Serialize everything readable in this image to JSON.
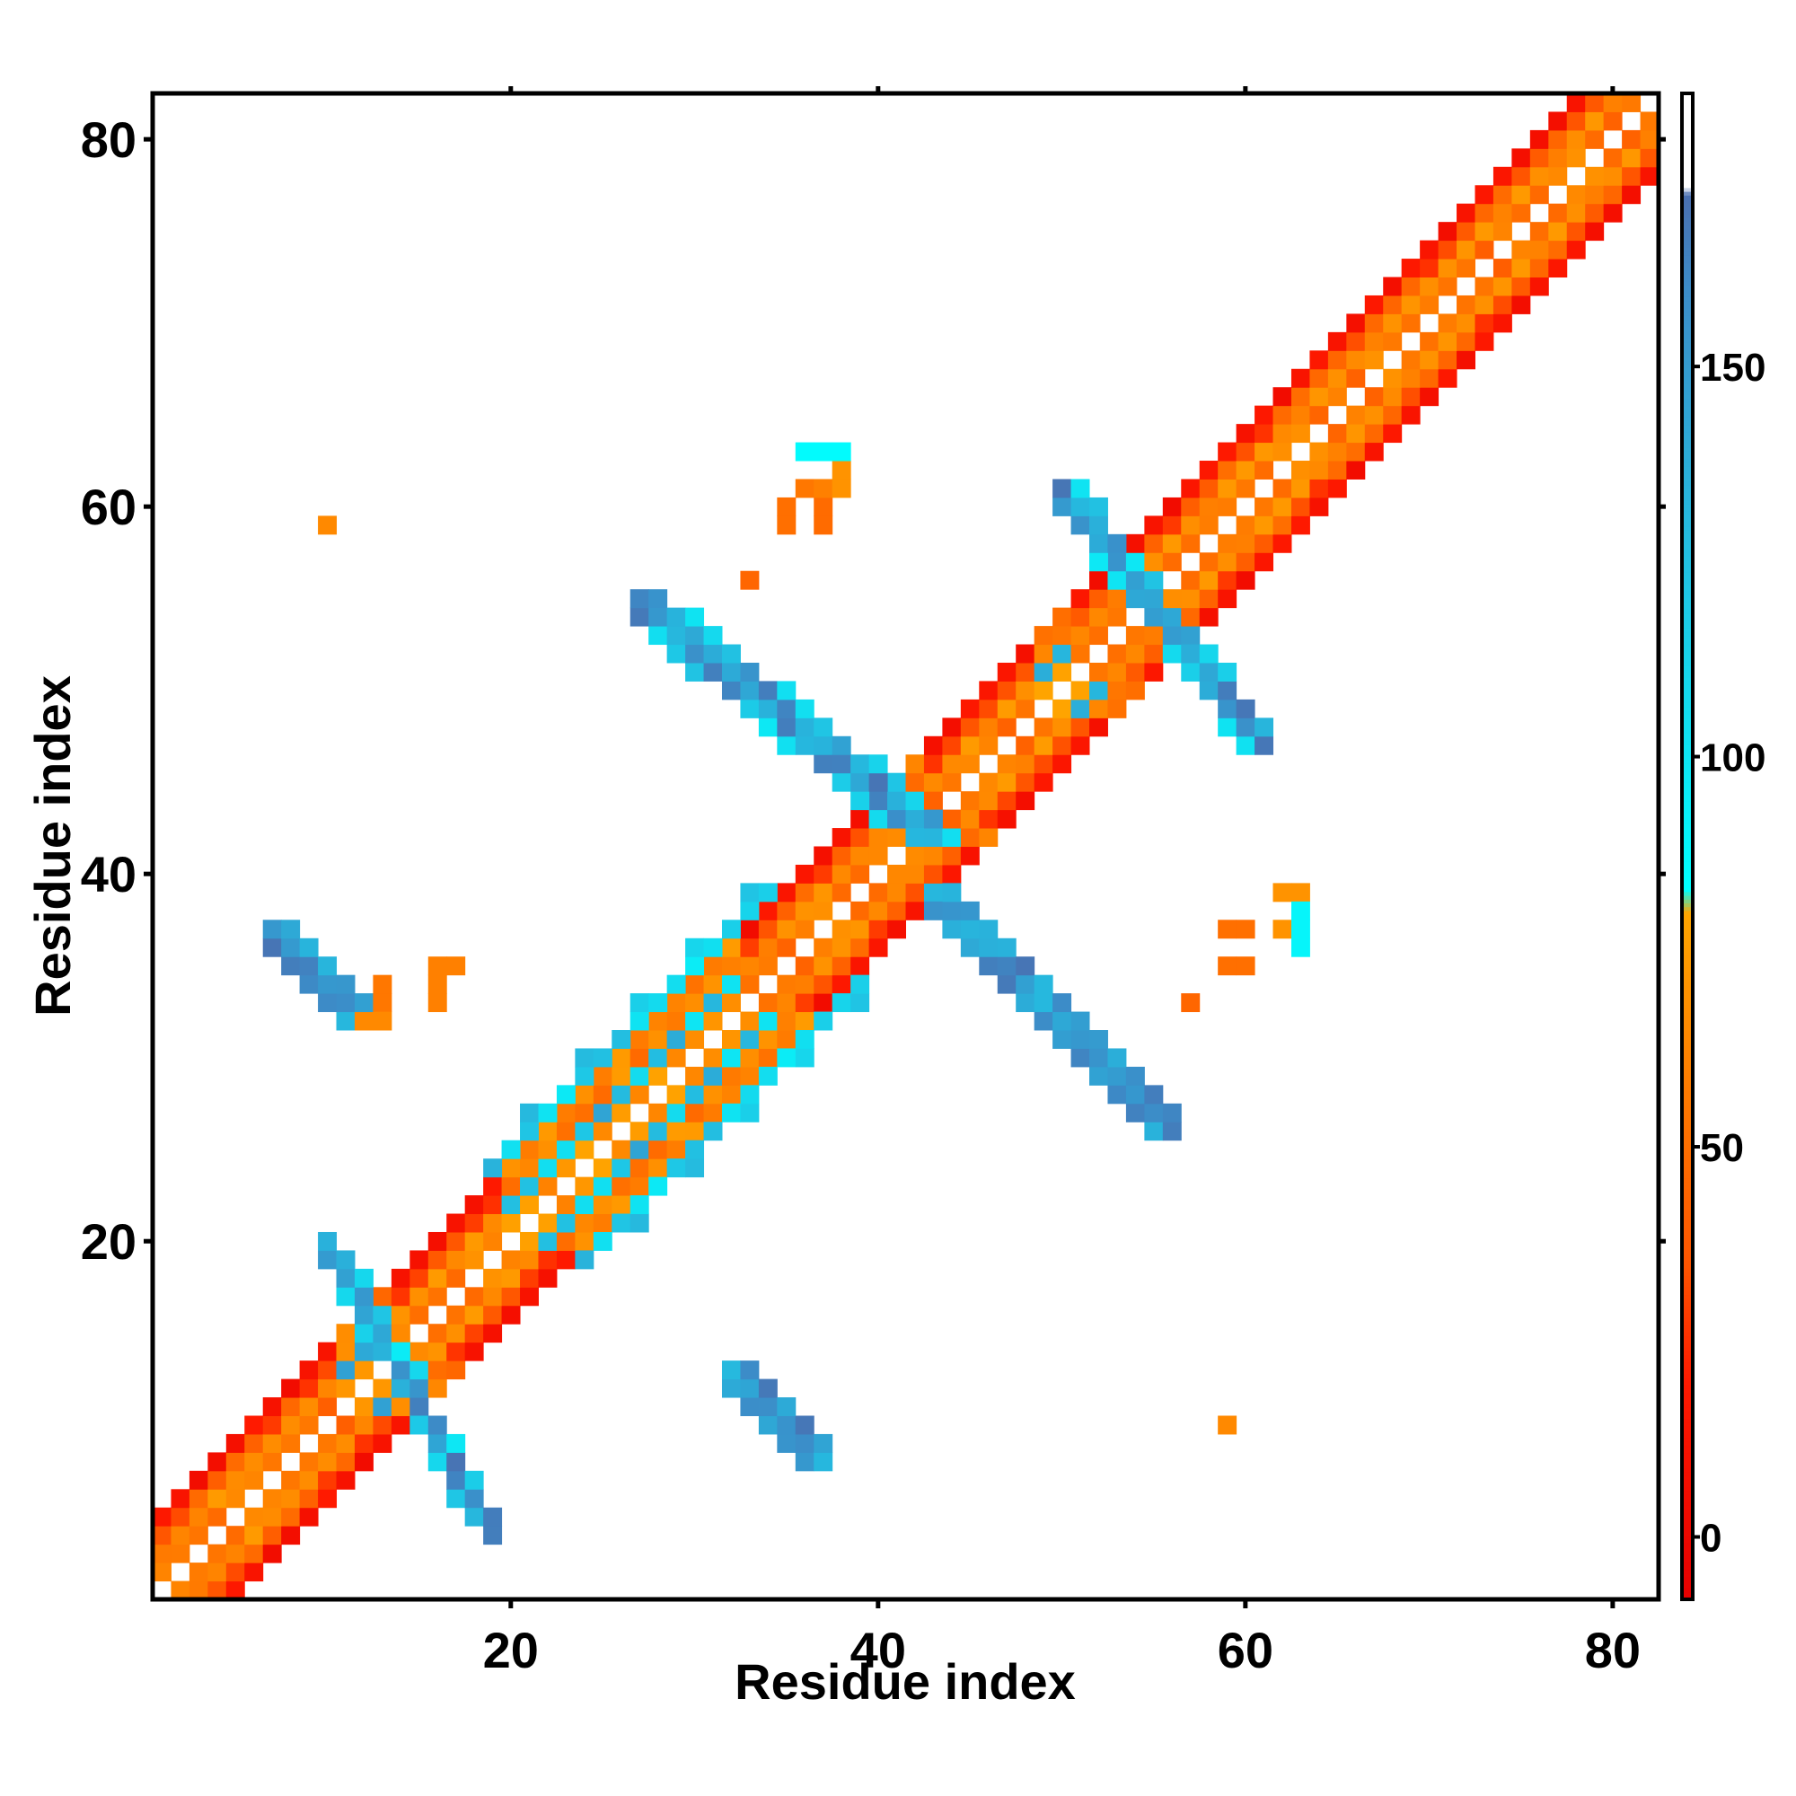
{
  "chart_data": {
    "type": "heatmap",
    "title": "",
    "xlabel": "Residue index",
    "ylabel": "Residue index",
    "xlim": [
      1,
      82
    ],
    "ylim": [
      1,
      82
    ],
    "x_ticks": [
      20,
      40,
      60,
      80
    ],
    "y_ticks": [
      20,
      40,
      60,
      80
    ],
    "grid": false,
    "colorbar": {
      "min": -8,
      "max": 185,
      "ticks": [
        0,
        50,
        100,
        150
      ],
      "stops": [
        {
          "value": -8,
          "color": "#e60000"
        },
        {
          "value": 20,
          "color": "#ff1a00"
        },
        {
          "value": 35,
          "color": "#ff5500"
        },
        {
          "value": 55,
          "color": "#ff7700"
        },
        {
          "value": 80,
          "color": "#ffa500"
        },
        {
          "value": 83,
          "color": "#00ffff"
        },
        {
          "value": 120,
          "color": "#1ec8e6"
        },
        {
          "value": 160,
          "color": "#3c8cc8"
        },
        {
          "value": 172,
          "color": "#4a6fb0"
        },
        {
          "value": 173,
          "color": "#ffffff"
        },
        {
          "value": 185,
          "color": "#ffffff"
        }
      ]
    },
    "value_ranges": {
      "helix": [
        0,
        25
      ],
      "strand": [
        110,
        160
      ],
      "unassigned": "white / no data"
    },
    "regions": [
      {
        "kind": "diagonal",
        "from": 1,
        "to": 82
      },
      {
        "kind": "antiparallel-sheet",
        "x": [
          10,
          19
        ],
        "y": [
          4,
          20
        ]
      },
      {
        "kind": "antiparallel-sheet",
        "x": [
          27,
          43
        ],
        "y": [
          42,
          55
        ]
      },
      {
        "kind": "antiparallel-sheet",
        "x": [
          43,
          56
        ],
        "y": [
          26,
          39
        ]
      },
      {
        "kind": "antiparallel-sheet",
        "x": [
          50,
          61
        ],
        "y": [
          47,
          61
        ]
      },
      {
        "kind": "antiparallel-sheet",
        "x": [
          7,
          12
        ],
        "y": [
          32,
          37
        ]
      },
      {
        "kind": "antiparallel-sheet",
        "x": [
          32,
          37
        ],
        "y": [
          8,
          13
        ]
      },
      {
        "kind": "diagonal-strand-band",
        "x": [
          19,
          34
        ],
        "y": [
          19,
          34
        ]
      }
    ],
    "isolated_cells": [
      {
        "x": 10,
        "y": 59,
        "value": 65
      },
      {
        "x": 33,
        "y": 56,
        "value": 45
      },
      {
        "x": 35,
        "y": 59,
        "value": 50
      },
      {
        "x": 35,
        "y": 60,
        "value": 50
      },
      {
        "x": 37,
        "y": 59,
        "value": 48
      },
      {
        "x": 37,
        "y": 60,
        "value": 48
      },
      {
        "x": 36,
        "y": 61,
        "value": 55
      },
      {
        "x": 37,
        "y": 61,
        "value": 60
      },
      {
        "x": 38,
        "y": 61,
        "value": 70
      },
      {
        "x": 38,
        "y": 62,
        "value": 70
      },
      {
        "x": 36,
        "y": 63,
        "value": 86
      },
      {
        "x": 37,
        "y": 63,
        "value": 86
      },
      {
        "x": 38,
        "y": 63,
        "value": 86
      },
      {
        "x": 59,
        "y": 37,
        "value": 50
      },
      {
        "x": 60,
        "y": 37,
        "value": 50
      },
      {
        "x": 59,
        "y": 35,
        "value": 50
      },
      {
        "x": 60,
        "y": 35,
        "value": 50
      },
      {
        "x": 62,
        "y": 39,
        "value": 70
      },
      {
        "x": 63,
        "y": 39,
        "value": 70
      },
      {
        "x": 62,
        "y": 37,
        "value": 70
      },
      {
        "x": 63,
        "y": 38,
        "value": 90
      },
      {
        "x": 63,
        "y": 37,
        "value": 90
      },
      {
        "x": 63,
        "y": 36,
        "value": 90
      },
      {
        "x": 57,
        "y": 33,
        "value": 45
      },
      {
        "x": 59,
        "y": 10,
        "value": 65
      },
      {
        "x": 16,
        "y": 35,
        "value": 60
      },
      {
        "x": 17,
        "y": 35,
        "value": 60
      },
      {
        "x": 16,
        "y": 34,
        "value": 60
      },
      {
        "x": 16,
        "y": 33,
        "value": 60
      },
      {
        "x": 13,
        "y": 33,
        "value": 55
      },
      {
        "x": 13,
        "y": 34,
        "value": 55
      },
      {
        "x": 12,
        "y": 32,
        "value": 65
      },
      {
        "x": 13,
        "y": 32,
        "value": 65
      }
    ]
  }
}
